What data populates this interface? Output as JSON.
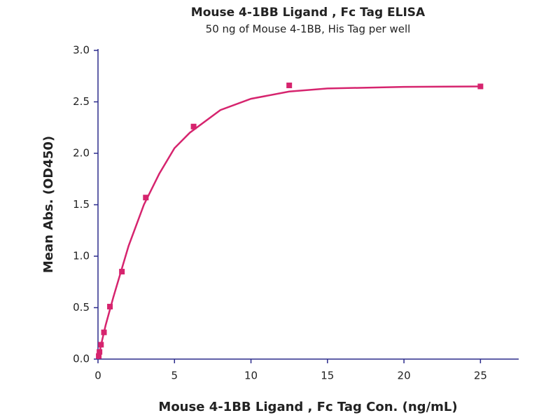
{
  "chart_data": {
    "type": "scatter",
    "title": "Mouse 4-1BB Ligand , Fc Tag ELISA",
    "subtitle": "50 ng of Mouse 4-1BB, His Tag per well",
    "x_label": "Mouse 4-1BB Ligand , Fc Tag Con. (ng/mL)",
    "y_label": "Mean Abs. (OD450)",
    "series": [
      {
        "x": [
          0.049,
          0.098,
          0.195,
          0.39,
          0.78,
          1.5625,
          3.125,
          6.25,
          12.5,
          25
        ],
        "values": [
          0.03,
          0.07,
          0.14,
          0.26,
          0.51,
          0.85,
          1.57,
          2.26,
          2.66,
          2.65
        ],
        "color": "#d6246e"
      }
    ],
    "curve": {
      "x": [
        0,
        0.25,
        0.5,
        1,
        1.5,
        2,
        3,
        4,
        5,
        6,
        8,
        10,
        12.5,
        15,
        20,
        25
      ],
      "values": [
        0,
        0.17,
        0.33,
        0.6,
        0.85,
        1.1,
        1.5,
        1.8,
        2.05,
        2.2,
        2.42,
        2.53,
        2.6,
        2.63,
        2.645,
        2.65
      ],
      "color": "#d6246e"
    },
    "xlim": [
      0,
      27.5
    ],
    "ylim": [
      0,
      3
    ],
    "xticks": [
      0,
      5,
      10,
      15,
      20,
      25
    ],
    "yticks": [
      {
        "value": 0,
        "label": "0.0"
      },
      {
        "value": 0.5,
        "label": "0.5"
      },
      {
        "value": 1,
        "label": "1.0"
      },
      {
        "value": 1.5,
        "label": "1.5"
      },
      {
        "value": 2,
        "label": "2.0"
      },
      {
        "value": 2.5,
        "label": "2.5"
      },
      {
        "value": 3,
        "label": "3.0"
      }
    ],
    "axis_color": "#2b2b8c"
  }
}
